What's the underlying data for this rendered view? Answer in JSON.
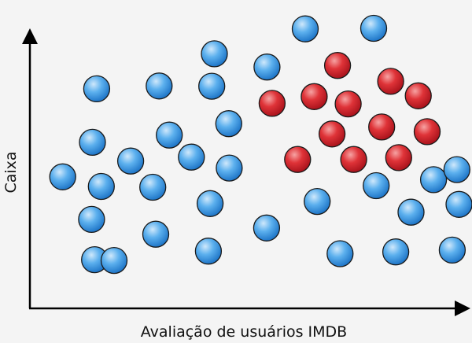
{
  "chart_data": {
    "type": "scatter",
    "title": "",
    "xlabel": "Avaliação de usuários IMDB",
    "ylabel": "Caixa",
    "xlim": [
      0,
      100
    ],
    "ylim": [
      0,
      100
    ],
    "grid": false,
    "legend": "none",
    "colors": {
      "blue": "#2f8fe3",
      "red": "#d8202a",
      "axis": "#000000"
    },
    "series": [
      {
        "color": "blue",
        "points": [
          {
            "x": 13.0,
            "y": 12.1
          },
          {
            "x": 17.6,
            "y": 11.8
          },
          {
            "x": 12.3,
            "y": 27.6
          },
          {
            "x": 5.5,
            "y": 44.0
          },
          {
            "x": 14.6,
            "y": 40.3
          },
          {
            "x": 12.5,
            "y": 57.3
          },
          {
            "x": 13.5,
            "y": 77.9
          },
          {
            "x": 21.5,
            "y": 50.1
          },
          {
            "x": 26.7,
            "y": 40.0
          },
          {
            "x": 27.4,
            "y": 21.9
          },
          {
            "x": 28.2,
            "y": 79.0
          },
          {
            "x": 30.6,
            "y": 60.1
          },
          {
            "x": 35.8,
            "y": 51.6
          },
          {
            "x": 40.6,
            "y": 78.9
          },
          {
            "x": 41.2,
            "y": 91.4
          },
          {
            "x": 44.6,
            "y": 64.5
          },
          {
            "x": 44.7,
            "y": 47.4
          },
          {
            "x": 40.2,
            "y": 33.7
          },
          {
            "x": 39.8,
            "y": 15.4
          },
          {
            "x": 53.5,
            "y": 24.3
          },
          {
            "x": 53.6,
            "y": 86.3
          },
          {
            "x": 62.6,
            "y": 101.0
          },
          {
            "x": 65.4,
            "y": 34.5
          },
          {
            "x": 70.8,
            "y": 14.4
          },
          {
            "x": 78.7,
            "y": 101.2
          },
          {
            "x": 79.3,
            "y": 40.6
          },
          {
            "x": 83.9,
            "y": 15.1
          },
          {
            "x": 87.5,
            "y": 30.4
          },
          {
            "x": 92.8,
            "y": 42.9
          },
          {
            "x": 98.3,
            "y": 46.8
          },
          {
            "x": 98.8,
            "y": 33.4
          },
          {
            "x": 97.2,
            "y": 15.8
          }
        ]
      },
      {
        "color": "red",
        "points": [
          {
            "x": 70.2,
            "y": 86.9
          },
          {
            "x": 82.7,
            "y": 80.8
          },
          {
            "x": 64.7,
            "y": 74.9
          },
          {
            "x": 72.7,
            "y": 72.1
          },
          {
            "x": 89.2,
            "y": 75.2
          },
          {
            "x": 54.8,
            "y": 72.3
          },
          {
            "x": 68.9,
            "y": 60.5
          },
          {
            "x": 80.6,
            "y": 63.2
          },
          {
            "x": 91.3,
            "y": 61.4
          },
          {
            "x": 60.8,
            "y": 50.7
          },
          {
            "x": 74.0,
            "y": 50.7
          },
          {
            "x": 84.6,
            "y": 51.4
          }
        ]
      }
    ],
    "annotations": []
  }
}
